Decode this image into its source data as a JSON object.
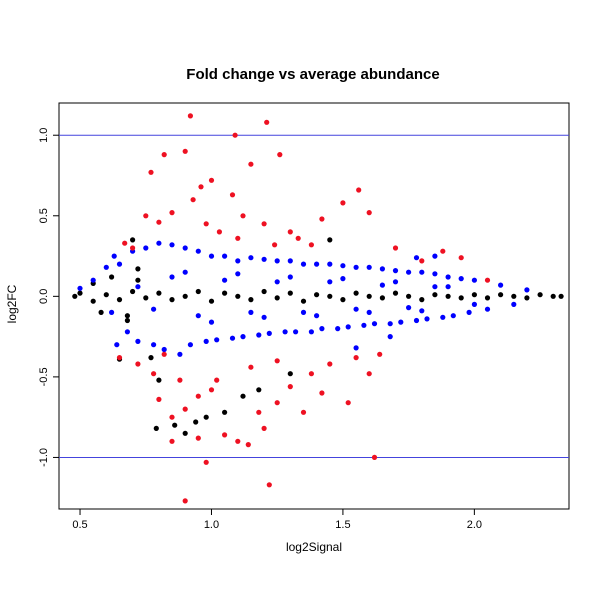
{
  "chart_data": {
    "type": "scatter",
    "title": "Fold change vs average abundance",
    "xlabel": "log2Signal",
    "ylabel": "log2FC",
    "xlim": [
      0.42,
      2.36
    ],
    "ylim": [
      -1.32,
      1.2
    ],
    "xticks": [
      0.5,
      1.0,
      1.5,
      2.0
    ],
    "xtick_labels": [
      "0.5",
      "1.0",
      "1.5",
      "2.0"
    ],
    "yticks": [
      -1.0,
      -0.5,
      0.0,
      0.5,
      1.0
    ],
    "ytick_labels": [
      "-1.0",
      "-0.5",
      "0.0",
      "0.5",
      "1.0"
    ],
    "hlines": [
      1.0,
      -1.0
    ],
    "hline_color": "#4444dd",
    "grid": false,
    "legend": "none",
    "colors": {
      "black": "#000000",
      "blue": "#0000ff",
      "red": "#ee1122"
    },
    "series": [
      {
        "color": "black",
        "points": [
          [
            0.48,
            0.0
          ],
          [
            0.5,
            0.02
          ],
          [
            0.55,
            -0.03
          ],
          [
            0.6,
            0.01
          ],
          [
            0.65,
            -0.02
          ],
          [
            0.7,
            0.03
          ],
          [
            0.75,
            -0.01
          ],
          [
            0.8,
            0.02
          ],
          [
            0.85,
            -0.02
          ],
          [
            0.9,
            0.0
          ],
          [
            0.95,
            0.03
          ],
          [
            1.0,
            -0.03
          ],
          [
            1.05,
            0.02
          ],
          [
            1.1,
            0.0
          ],
          [
            1.15,
            -0.02
          ],
          [
            1.2,
            0.03
          ],
          [
            1.25,
            -0.01
          ],
          [
            1.3,
            0.02
          ],
          [
            1.35,
            -0.03
          ],
          [
            1.4,
            0.01
          ],
          [
            1.45,
            0.0
          ],
          [
            1.5,
            -0.02
          ],
          [
            1.55,
            0.02
          ],
          [
            1.6,
            0.0
          ],
          [
            1.65,
            -0.01
          ],
          [
            1.7,
            0.02
          ],
          [
            1.75,
            0.0
          ],
          [
            1.8,
            -0.02
          ],
          [
            1.85,
            0.01
          ],
          [
            1.9,
            0.0
          ],
          [
            1.95,
            -0.01
          ],
          [
            2.0,
            0.01
          ],
          [
            2.05,
            -0.01
          ],
          [
            2.1,
            0.01
          ],
          [
            2.15,
            0.0
          ],
          [
            2.2,
            -0.01
          ],
          [
            2.25,
            0.01
          ],
          [
            2.3,
            0.0
          ],
          [
            2.33,
            0.0
          ],
          [
            0.55,
            0.08
          ],
          [
            0.58,
            -0.1
          ],
          [
            0.62,
            0.12
          ],
          [
            0.68,
            -0.15
          ],
          [
            0.72,
            0.17
          ],
          [
            0.77,
            -0.38
          ],
          [
            0.8,
            -0.52
          ],
          [
            0.79,
            -0.82
          ],
          [
            0.86,
            -0.8
          ],
          [
            0.9,
            -0.85
          ],
          [
            0.94,
            -0.78
          ],
          [
            0.98,
            -0.75
          ],
          [
            1.05,
            -0.72
          ],
          [
            1.12,
            -0.62
          ],
          [
            1.18,
            -0.58
          ],
          [
            0.68,
            -0.12
          ],
          [
            0.72,
            0.1
          ],
          [
            1.3,
            -0.48
          ],
          [
            1.45,
            0.35
          ],
          [
            0.65,
            -0.39
          ],
          [
            0.7,
            0.35
          ]
        ]
      },
      {
        "color": "blue",
        "points": [
          [
            0.5,
            0.05
          ],
          [
            0.55,
            0.1
          ],
          [
            0.6,
            0.18
          ],
          [
            0.62,
            -0.1
          ],
          [
            0.65,
            0.2
          ],
          [
            0.68,
            -0.22
          ],
          [
            0.7,
            0.28
          ],
          [
            0.72,
            -0.28
          ],
          [
            0.75,
            0.3
          ],
          [
            0.78,
            -0.3
          ],
          [
            0.8,
            0.33
          ],
          [
            0.82,
            -0.33
          ],
          [
            0.85,
            0.32
          ],
          [
            0.88,
            -0.36
          ],
          [
            0.9,
            0.3
          ],
          [
            0.92,
            -0.3
          ],
          [
            0.95,
            0.28
          ],
          [
            0.98,
            -0.28
          ],
          [
            1.0,
            0.25
          ],
          [
            1.02,
            -0.27
          ],
          [
            1.05,
            0.25
          ],
          [
            1.08,
            -0.26
          ],
          [
            1.1,
            0.22
          ],
          [
            1.12,
            -0.25
          ],
          [
            1.15,
            0.24
          ],
          [
            1.18,
            -0.24
          ],
          [
            1.2,
            0.23
          ],
          [
            1.22,
            -0.23
          ],
          [
            1.25,
            0.22
          ],
          [
            1.28,
            -0.22
          ],
          [
            1.3,
            0.22
          ],
          [
            1.32,
            -0.22
          ],
          [
            1.35,
            0.2
          ],
          [
            1.38,
            -0.22
          ],
          [
            1.4,
            0.2
          ],
          [
            1.42,
            -0.2
          ],
          [
            1.45,
            0.2
          ],
          [
            1.48,
            -0.2
          ],
          [
            1.5,
            0.19
          ],
          [
            1.52,
            -0.19
          ],
          [
            1.55,
            0.18
          ],
          [
            1.58,
            -0.18
          ],
          [
            1.6,
            0.18
          ],
          [
            1.62,
            -0.17
          ],
          [
            1.65,
            0.17
          ],
          [
            1.68,
            -0.17
          ],
          [
            1.7,
            0.16
          ],
          [
            1.72,
            -0.16
          ],
          [
            1.75,
            0.15
          ],
          [
            1.78,
            -0.15
          ],
          [
            1.8,
            0.15
          ],
          [
            1.82,
            -0.14
          ],
          [
            1.85,
            0.14
          ],
          [
            1.88,
            -0.13
          ],
          [
            1.9,
            0.12
          ],
          [
            1.92,
            -0.12
          ],
          [
            1.95,
            0.11
          ],
          [
            1.98,
            -0.1
          ],
          [
            2.0,
            0.1
          ],
          [
            2.05,
            -0.08
          ],
          [
            2.1,
            0.07
          ],
          [
            2.15,
            -0.05
          ],
          [
            2.2,
            0.04
          ],
          [
            0.85,
            0.12
          ],
          [
            0.95,
            -0.12
          ],
          [
            1.05,
            0.1
          ],
          [
            1.15,
            -0.1
          ],
          [
            1.25,
            0.09
          ],
          [
            1.35,
            -0.1
          ],
          [
            1.45,
            0.09
          ],
          [
            1.55,
            -0.08
          ],
          [
            1.65,
            0.07
          ],
          [
            1.75,
            -0.07
          ],
          [
            1.85,
            0.06
          ],
          [
            0.72,
            0.06
          ],
          [
            0.78,
            -0.08
          ],
          [
            0.9,
            0.15
          ],
          [
            1.0,
            -0.16
          ],
          [
            1.1,
            0.14
          ],
          [
            1.2,
            -0.13
          ],
          [
            1.3,
            0.12
          ],
          [
            1.4,
            -0.12
          ],
          [
            1.5,
            0.11
          ],
          [
            1.6,
            -0.1
          ],
          [
            1.7,
            0.09
          ],
          [
            1.8,
            -0.09
          ],
          [
            1.9,
            0.06
          ],
          [
            2.0,
            -0.05
          ],
          [
            1.55,
            -0.32
          ],
          [
            1.68,
            -0.25
          ],
          [
            1.78,
            0.24
          ],
          [
            1.85,
            0.25
          ],
          [
            0.63,
            0.25
          ],
          [
            0.64,
            -0.3
          ]
        ]
      },
      {
        "color": "red",
        "points": [
          [
            0.92,
            1.12
          ],
          [
            1.09,
            1.0
          ],
          [
            1.21,
            1.08
          ],
          [
            0.77,
            0.77
          ],
          [
            0.82,
            0.88
          ],
          [
            0.9,
            0.9
          ],
          [
            0.96,
            0.68
          ],
          [
            1.0,
            0.72
          ],
          [
            1.08,
            0.63
          ],
          [
            1.15,
            0.82
          ],
          [
            1.26,
            0.88
          ],
          [
            0.75,
            0.5
          ],
          [
            0.8,
            0.46
          ],
          [
            0.85,
            0.52
          ],
          [
            0.93,
            0.6
          ],
          [
            0.98,
            0.45
          ],
          [
            1.03,
            0.4
          ],
          [
            1.12,
            0.5
          ],
          [
            1.2,
            0.45
          ],
          [
            1.3,
            0.4
          ],
          [
            1.42,
            0.48
          ],
          [
            1.5,
            0.58
          ],
          [
            1.56,
            0.66
          ],
          [
            1.6,
            0.52
          ],
          [
            1.38,
            0.32
          ],
          [
            1.24,
            0.32
          ],
          [
            1.1,
            0.36
          ],
          [
            0.7,
            0.3
          ],
          [
            0.67,
            0.33
          ],
          [
            0.65,
            -0.38
          ],
          [
            0.72,
            -0.42
          ],
          [
            0.78,
            -0.48
          ],
          [
            0.8,
            -0.64
          ],
          [
            0.85,
            -0.75
          ],
          [
            0.9,
            -0.7
          ],
          [
            0.95,
            -0.62
          ],
          [
            1.0,
            -0.58
          ],
          [
            1.05,
            -0.86
          ],
          [
            1.1,
            -0.9
          ],
          [
            1.14,
            -0.92
          ],
          [
            1.18,
            -0.72
          ],
          [
            1.25,
            -0.66
          ],
          [
            1.3,
            -0.56
          ],
          [
            1.38,
            -0.48
          ],
          [
            1.45,
            -0.42
          ],
          [
            1.52,
            -0.66
          ],
          [
            1.6,
            -0.48
          ],
          [
            0.98,
            -1.03
          ],
          [
            1.22,
            -1.17
          ],
          [
            0.9,
            -1.27
          ],
          [
            0.85,
            -0.9
          ],
          [
            0.95,
            -0.88
          ],
          [
            1.2,
            -0.82
          ],
          [
            1.35,
            -0.72
          ],
          [
            1.42,
            -0.6
          ],
          [
            0.88,
            -0.52
          ],
          [
            1.02,
            -0.52
          ],
          [
            1.15,
            -0.44
          ],
          [
            1.25,
            -0.4
          ],
          [
            1.55,
            -0.38
          ],
          [
            1.64,
            -0.36
          ],
          [
            1.7,
            0.3
          ],
          [
            1.8,
            0.22
          ],
          [
            1.88,
            0.28
          ],
          [
            1.95,
            0.24
          ],
          [
            2.05,
            0.1
          ],
          [
            1.33,
            0.36
          ],
          [
            0.82,
            -0.36
          ],
          [
            1.62,
            -1.0
          ]
        ]
      }
    ]
  }
}
